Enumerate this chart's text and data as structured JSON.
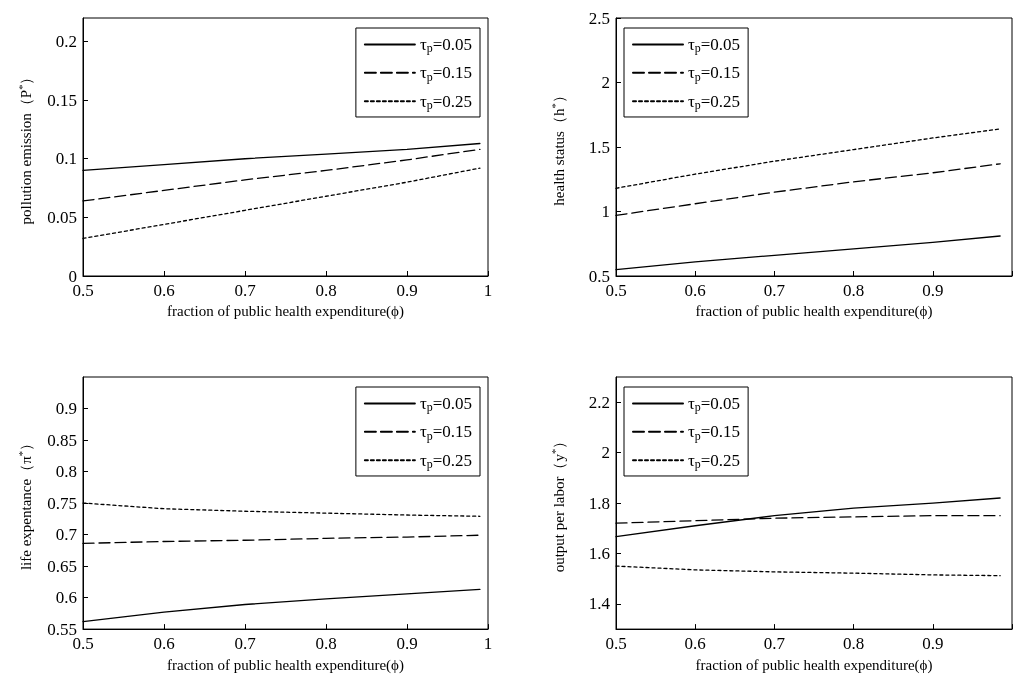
{
  "chart_data": [
    {
      "type": "line",
      "xlabel": "fraction of public health expenditure(ϕ)",
      "ylabel": "pollution emission（P$^{*}$）",
      "x": [
        0.5,
        0.6,
        0.7,
        0.8,
        0.9,
        0.99
      ],
      "xlim": [
        0.5,
        1
      ],
      "xticks": [
        0.5,
        0.6,
        0.7,
        0.8,
        0.9,
        1
      ],
      "ylim": [
        0,
        0.22
      ],
      "yticks": [
        0,
        0.05,
        0.1,
        0.15,
        0.2
      ],
      "grid": false,
      "legend": "top right",
      "series": [
        {
          "name": "τ$_{p}$=0.05",
          "color": "#000000",
          "line_style": "solid",
          "values": [
            0.09,
            0.095,
            0.1,
            0.104,
            0.108,
            0.113
          ]
        },
        {
          "name": "τ$_{p}$=0.15",
          "color": "#000000",
          "line_style": "dashed",
          "values": [
            0.064,
            0.073,
            0.082,
            0.09,
            0.099,
            0.108
          ]
        },
        {
          "name": "τ$_{p}$=0.25",
          "color": "#000000",
          "line_style": "dotted",
          "values": [
            0.032,
            0.044,
            0.056,
            0.068,
            0.08,
            0.092
          ]
        }
      ]
    },
    {
      "type": "line",
      "xlabel": "fraction of public health expenditure(ϕ)",
      "ylabel": "health status（h$^{*}$）",
      "x": [
        0.5,
        0.6,
        0.7,
        0.8,
        0.9,
        0.985
      ],
      "xlim": [
        0.5,
        1
      ],
      "xticks": [
        0.5,
        0.6,
        0.7,
        0.8,
        0.9,
        {
          "value": 1,
          "label": null
        }
      ],
      "ylim": [
        0.5,
        2.5
      ],
      "yticks": [
        0.5,
        1,
        1.5,
        2,
        2.5
      ],
      "grid": false,
      "legend": "top left",
      "series": [
        {
          "name": "τ$_{p}$=0.05",
          "color": "#000000",
          "line_style": "solid",
          "values": [
            0.55,
            0.61,
            0.66,
            0.71,
            0.76,
            0.81
          ]
        },
        {
          "name": "τ$_{p}$=0.15",
          "color": "#000000",
          "line_style": "dashed",
          "values": [
            0.97,
            1.06,
            1.15,
            1.23,
            1.3,
            1.37
          ]
        },
        {
          "name": "τ$_{p}$=0.25",
          "color": "#000000",
          "line_style": "dotted",
          "values": [
            1.18,
            1.29,
            1.39,
            1.48,
            1.57,
            1.64
          ]
        }
      ]
    },
    {
      "type": "line",
      "xlabel": "fraction of public health expenditure(ϕ)",
      "ylabel": "life expentance（π$^{*}$）",
      "x": [
        0.5,
        0.6,
        0.7,
        0.8,
        0.9,
        0.99
      ],
      "xlim": [
        0.5,
        1
      ],
      "xticks": [
        0.5,
        0.6,
        0.7,
        0.8,
        0.9,
        1
      ],
      "ylim": [
        0.55,
        0.95
      ],
      "yticks": [
        0.55,
        0.6,
        0.65,
        0.7,
        0.75,
        0.8,
        0.85,
        0.9
      ],
      "grid": false,
      "legend": "top right",
      "series": [
        {
          "name": "τ$_{p}$=0.05",
          "color": "#000000",
          "line_style": "solid",
          "values": [
            0.562,
            0.577,
            0.589,
            0.598,
            0.606,
            0.613
          ]
        },
        {
          "name": "τ$_{p}$=0.15",
          "color": "#000000",
          "line_style": "dashed",
          "values": [
            0.686,
            0.689,
            0.691,
            0.694,
            0.696,
            0.699
          ]
        },
        {
          "name": "τ$_{p}$=0.25",
          "color": "#000000",
          "line_style": "dotted",
          "values": [
            0.75,
            0.741,
            0.737,
            0.734,
            0.731,
            0.729
          ]
        }
      ]
    },
    {
      "type": "line",
      "xlabel": "fraction of public health expenditure(ϕ)",
      "ylabel": "output per labor（y$^{*}$）",
      "x": [
        0.5,
        0.6,
        0.7,
        0.8,
        0.9,
        0.985
      ],
      "xlim": [
        0.5,
        1
      ],
      "xticks": [
        0.5,
        0.6,
        0.7,
        0.8,
        0.9,
        {
          "value": 1,
          "label": null
        }
      ],
      "ylim": [
        1.3,
        2.3
      ],
      "yticks": [
        1.4,
        1.6,
        1.8,
        2,
        2.2
      ],
      "grid": false,
      "legend": "top left",
      "series": [
        {
          "name": "τ$_{p}$=0.05",
          "color": "#000000",
          "line_style": "solid",
          "values": [
            1.667,
            1.71,
            1.75,
            1.78,
            1.8,
            1.82
          ]
        },
        {
          "name": "τ$_{p}$=0.15",
          "color": "#000000",
          "line_style": "dashed",
          "values": [
            1.72,
            1.73,
            1.74,
            1.745,
            1.75,
            1.75
          ]
        },
        {
          "name": "τ$_{p}$=0.25",
          "color": "#000000",
          "line_style": "dotted",
          "values": [
            1.55,
            1.535,
            1.527,
            1.522,
            1.515,
            1.512
          ]
        }
      ]
    }
  ]
}
